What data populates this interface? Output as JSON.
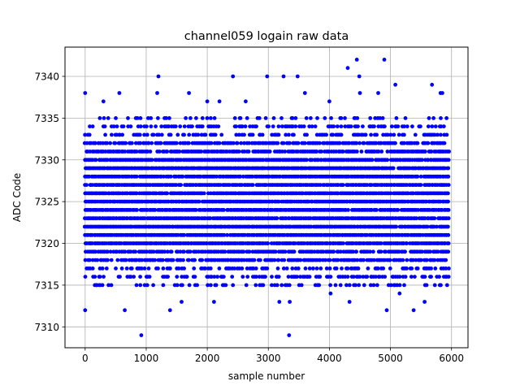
{
  "chart_data": {
    "type": "scatter",
    "title": "channel059 logain raw data",
    "xlabel": "sample number",
    "ylabel": "ADC Code",
    "xlim": [
      -330,
      6270
    ],
    "ylim": [
      7307.5,
      7343.5
    ],
    "xticks": [
      0,
      1000,
      2000,
      3000,
      4000,
      5000,
      6000
    ],
    "yticks": [
      7310,
      7315,
      7320,
      7325,
      7330,
      7335,
      7340
    ],
    "grid": true,
    "marker_color": "#0000ff",
    "x_range": [
      0,
      5950
    ],
    "level_range": [
      7315,
      7335
    ],
    "outliers": [
      {
        "x": 0,
        "y": 7338
      },
      {
        "x": 0,
        "y": 7312
      },
      {
        "x": 300,
        "y": 7337
      },
      {
        "x": 560,
        "y": 7338
      },
      {
        "x": 650,
        "y": 7312
      },
      {
        "x": 920,
        "y": 7309
      },
      {
        "x": 1180,
        "y": 7338
      },
      {
        "x": 1200,
        "y": 7340
      },
      {
        "x": 1390,
        "y": 7312
      },
      {
        "x": 1580,
        "y": 7313
      },
      {
        "x": 1700,
        "y": 7338
      },
      {
        "x": 2000,
        "y": 7337
      },
      {
        "x": 2110,
        "y": 7313
      },
      {
        "x": 2200,
        "y": 7337
      },
      {
        "x": 2420,
        "y": 7340
      },
      {
        "x": 2630,
        "y": 7337
      },
      {
        "x": 2980,
        "y": 7340
      },
      {
        "x": 3180,
        "y": 7313
      },
      {
        "x": 3250,
        "y": 7340
      },
      {
        "x": 3340,
        "y": 7309
      },
      {
        "x": 3350,
        "y": 7313
      },
      {
        "x": 3480,
        "y": 7340
      },
      {
        "x": 3600,
        "y": 7338
      },
      {
        "x": 4000,
        "y": 7337
      },
      {
        "x": 4020,
        "y": 7314
      },
      {
        "x": 4300,
        "y": 7341
      },
      {
        "x": 4330,
        "y": 7313
      },
      {
        "x": 4450,
        "y": 7342
      },
      {
        "x": 4490,
        "y": 7340
      },
      {
        "x": 4500,
        "y": 7338
      },
      {
        "x": 4800,
        "y": 7338
      },
      {
        "x": 4900,
        "y": 7342
      },
      {
        "x": 4940,
        "y": 7312
      },
      {
        "x": 5080,
        "y": 7339
      },
      {
        "x": 5150,
        "y": 7314
      },
      {
        "x": 5380,
        "y": 7312
      },
      {
        "x": 5560,
        "y": 7313
      },
      {
        "x": 5680,
        "y": 7339
      },
      {
        "x": 5820,
        "y": 7338
      },
      {
        "x": 5850,
        "y": 7338
      }
    ]
  }
}
